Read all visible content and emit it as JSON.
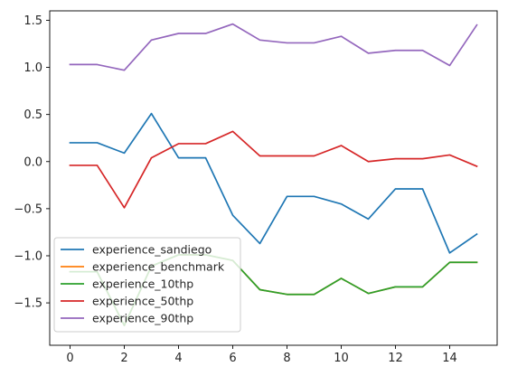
{
  "chart_data": {
    "type": "line",
    "title": "",
    "xlabel": "",
    "ylabel": "",
    "xlim": [
      -0.75,
      15.75
    ],
    "ylim": [
      -1.95,
      1.6
    ],
    "x_ticks": [
      0,
      2,
      4,
      6,
      8,
      10,
      12,
      14
    ],
    "y_ticks": [
      -1.5,
      -1.0,
      -0.5,
      0.0,
      0.5,
      1.0,
      1.5
    ],
    "x_tick_labels": [
      "0",
      "2",
      "4",
      "6",
      "8",
      "10",
      "12",
      "14"
    ],
    "y_tick_labels": [
      "−1.5",
      "−1.0",
      "−0.5",
      "0.0",
      "0.5",
      "1.0",
      "1.5"
    ],
    "grid": false,
    "legend_position": "lower-left",
    "x": [
      0,
      1,
      2,
      3,
      4,
      5,
      6,
      7,
      8,
      9,
      10,
      11,
      12,
      13,
      14,
      15
    ],
    "series": [
      {
        "name": "experience_sandiego",
        "color": "#1f77b4",
        "values": [
          0.2,
          0.2,
          0.09,
          0.51,
          0.04,
          0.04,
          -0.57,
          -0.87,
          -0.37,
          -0.37,
          -0.45,
          -0.61,
          -0.29,
          -0.29,
          -0.97,
          -0.77
        ]
      },
      {
        "name": "experience_benchmark",
        "color": "#ff7f0e",
        "values": [
          -1.17,
          -1.17,
          -1.74,
          -1.11,
          -0.99,
          -0.99,
          -1.05,
          -1.36,
          -1.41,
          -1.41,
          -1.24,
          -1.4,
          -1.33,
          -1.33,
          -1.07,
          -1.07
        ]
      },
      {
        "name": "experience_10thp",
        "color": "#2ca02c",
        "values": [
          -1.17,
          -1.17,
          -1.74,
          -1.11,
          -0.99,
          -0.99,
          -1.05,
          -1.36,
          -1.41,
          -1.41,
          -1.24,
          -1.4,
          -1.33,
          -1.33,
          -1.07,
          -1.07
        ]
      },
      {
        "name": "experience_50thp",
        "color": "#d62728",
        "values": [
          -0.04,
          -0.04,
          -0.49,
          0.04,
          0.19,
          0.19,
          0.32,
          0.06,
          0.06,
          0.06,
          0.17,
          0.0,
          0.03,
          0.03,
          0.07,
          -0.05
        ]
      },
      {
        "name": "experience_90thp",
        "color": "#9467bd",
        "values": [
          1.03,
          1.03,
          0.97,
          1.29,
          1.36,
          1.36,
          1.46,
          1.29,
          1.26,
          1.26,
          1.33,
          1.15,
          1.18,
          1.18,
          1.02,
          1.45
        ]
      }
    ]
  }
}
